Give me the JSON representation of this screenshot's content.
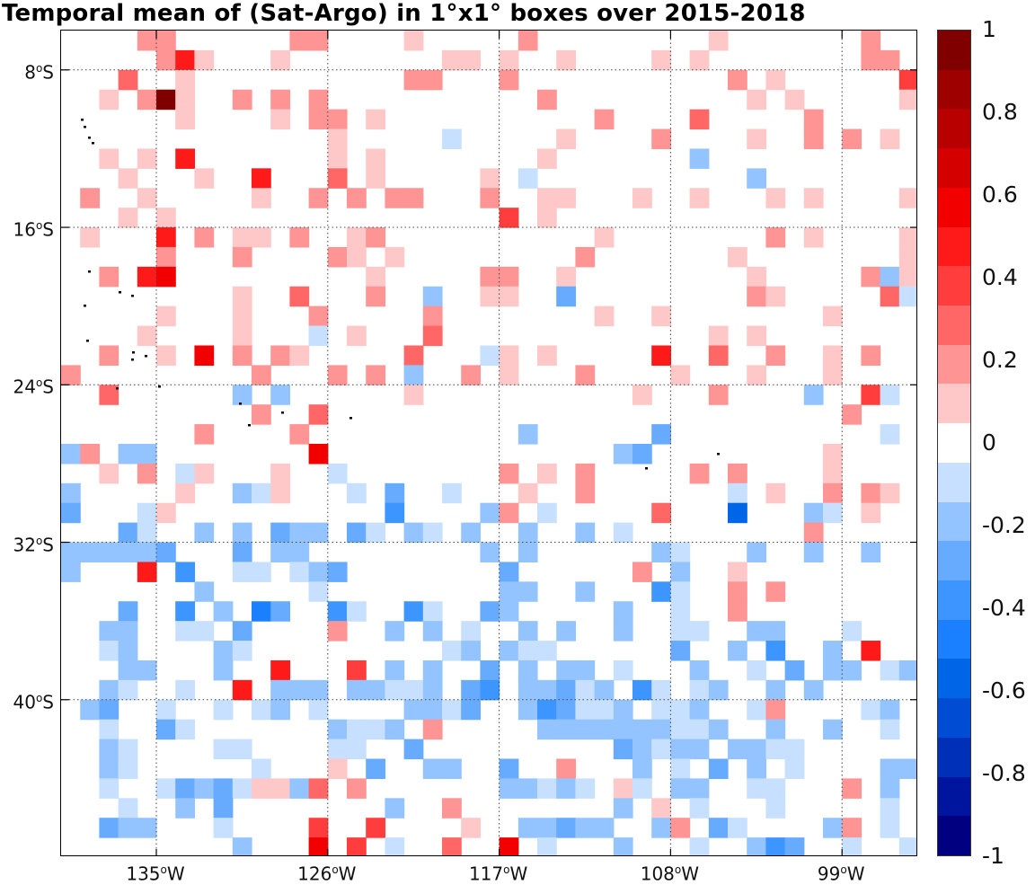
{
  "title": "Temporal mean of (Sat-Argo) in 1°x1° boxes over 2015-2018",
  "map": {
    "lon_range": [
      -140,
      -95
    ],
    "lat_range": [
      -6,
      -48
    ],
    "lat_ticks": [
      {
        "value": -8,
        "deg": "8",
        "unit": "o",
        "hemi": "S"
      },
      {
        "value": -16,
        "deg": "16",
        "unit": "o",
        "hemi": "S"
      },
      {
        "value": -24,
        "deg": "24",
        "unit": "o",
        "hemi": "S"
      },
      {
        "value": -32,
        "deg": "32",
        "unit": "o",
        "hemi": "S"
      },
      {
        "value": -40,
        "deg": "40",
        "unit": "o",
        "hemi": "S"
      }
    ],
    "lon_ticks": [
      {
        "value": -135,
        "deg": "135",
        "unit": "o",
        "hemi": "W"
      },
      {
        "value": -126,
        "deg": "126",
        "unit": "o",
        "hemi": "W"
      },
      {
        "value": -117,
        "deg": "117",
        "unit": "o",
        "hemi": "W"
      },
      {
        "value": -108,
        "deg": "108",
        "unit": "o",
        "hemi": "W"
      },
      {
        "value": -99,
        "deg": "99",
        "unit": "o",
        "hemi": "W"
      }
    ],
    "grid_lines": "dotted"
  },
  "colorbar": {
    "range": [
      -1,
      1
    ],
    "step": 0.1,
    "colors": [
      "#000080",
      "#00159e",
      "#0030b8",
      "#004cd2",
      "#0066e8",
      "#1a80ff",
      "#3d95ff",
      "#66abff",
      "#94c4ff",
      "#c8e0ff",
      "#ffffff",
      "#ffc8c8",
      "#ff9494",
      "#ff6666",
      "#ff3d3d",
      "#ff1a1a",
      "#f20000",
      "#d40000",
      "#b80000",
      "#9e0000",
      "#800000"
    ],
    "labels": [
      "1",
      "0.8",
      "0.6",
      "0.4",
      "0.2",
      "0",
      "-0.2",
      "-0.4",
      "-0.6",
      "-0.8",
      "-1"
    ]
  },
  "chart_data": {
    "type": "heatmap",
    "title": "Temporal mean of (Sat-Argo) in 1°x1° boxes over 2015-2018",
    "xlabel": "",
    "ylabel": "",
    "x_start": -140,
    "x_end": -95,
    "y_start": -6,
    "y_end": -48,
    "cell_size_deg": 1,
    "levels": "each character is one 1°x1° box; '.' = no data/zero; '1'..'9','a'=+0.1..+1.0 ; 'A'..'J'=-0.1..-1.0",
    "rows": [
      "....22......22....1.....2.........1.......2..",
      ".....251...1........11.1..1....1.1........22.",
      "...3..1...........22...2...........2.1......4",
      "..1.2a1..2.2.2...........2..........1.1.....1",
      "..e...1....1.22.1...........2....3.....2.....",
      "..f...........1.....A.....1....2....1..2.2.1.",
      "..1.1.5.......1.1........1.......B...........",
      "...1...1..5...3.1.....1.A...........B.......",
      ".2..1.....1..2.2.22...2..11...1..1...1.1....1",
      "...1.1.................4.1...................",
      ".1...5.2.11.2..12...........1........2.1....1",
      ".....2...2....21.1.........2.......1........1",
      "..2.56..........1.....22..1.........1.....2B1",
      ".........1..3...2..B..11..C.........21.....3A",
      ".....1...1...2.....2........1..1........1....",
      "....1....1...A.1...3..............1.1........",
      "..2..1.6.2.21.....3...A1.1.....5..3..2..1.2..",
      "2.........2...2.2.B..2.1...2....1...1...1....",
      "..3......B.B......1...........1...2....B..4A.",
      "..........2..3...........................2...",
      ".......2....2...........B......C...........A.",
      "B2.BB........6...............BC.........1....",
      "..1.2.A1...1..A........2.1.2.....2.2....1....",
      "B.....1..BA1...A.C..A...1..2.......A.1..2.21.",
      "C...A1...........D....B2.A.....3...F...BA.1..",
      "...CA..B.B.CBB.CA.BA.B..B..B.A.........2.....",
      "BBBBBC...C.BB.........B.B......BA...B..B..B..",
      "B...5.D..AA.ABC........C......2.B..1.........",
      ".......B.....A.........BB..B...DA..2.2.......",
      "...C..D.B.EC..DA..DA..CB.....B..A..2.........",
      "..BB..AA.C....2..B.B.A..B.B..B..AA..BB...A...",
      "..AB....BA..........AB.BAA......C..B.D..B.5..",
      "...BB...B..5...4.B.B..C.B.BB.A...B..A.C.BB.AB",
      "..BA..A..5.BBB.BBAAB.CD.BBCAB.DA.AB..B.B.....",
      ".BC..A..A.AB.A....BBAC..BDCAAB.AAB..A2....AB.",
      "..A..CA.......BAAB.2.....BBBBBBBAAB..B..B..A.",
      "..BA....AA....AA..C..........CBABB.BBAA......",
      "..BA......A...1.C..BB..C..2...B.A.C.B.A....BB",
      "..A..ACBCA11B3.2.......BBABA.1A.BB..AA...2.B.",
      "...A..B.C........B..2........B.1.A...A.....A.",
      "..CBB...A....4..4....1..BBCBB..B2.CA....B2.A.",
      ".........B...6.4.A..3..6.A...B...A..BDC..A..A."
    ]
  }
}
